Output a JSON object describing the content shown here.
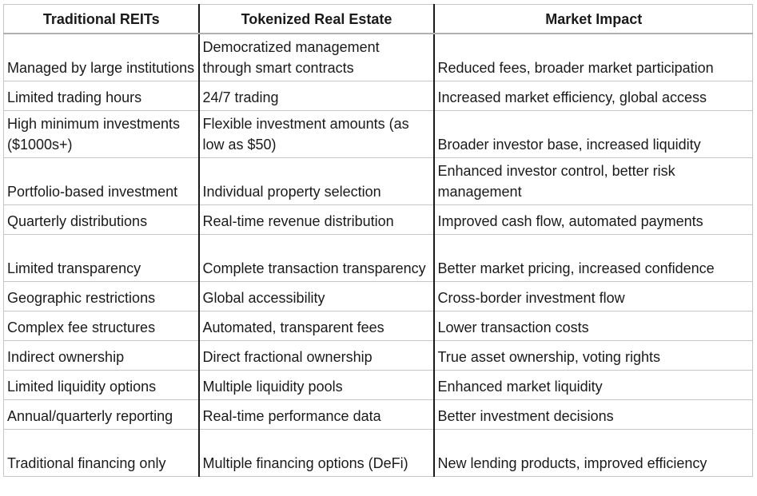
{
  "headers": [
    "Traditional REITs",
    "Tokenized Real Estate",
    "Market Impact"
  ],
  "rows": [
    [
      "Managed by large institutions",
      "Democratized management through smart contracts",
      "Reduced fees, broader market participation"
    ],
    [
      "Limited trading hours",
      "24/7 trading",
      "Increased market efficiency, global access"
    ],
    [
      "High minimum investments ($1000s+)",
      "Flexible investment amounts (as low as $50)",
      "Broader investor base, increased liquidity"
    ],
    [
      "Portfolio-based investment",
      "Individual property selection",
      "Enhanced investor control, better risk management"
    ],
    [
      "Quarterly distributions",
      "Real-time revenue distribution",
      "Improved cash flow, automated payments"
    ],
    [
      "Limited transparency",
      "Complete transaction transparency",
      "Better market pricing, increased confidence"
    ],
    [
      "Geographic restrictions",
      "Global accessibility",
      "Cross-border investment flow"
    ],
    [
      "Complex fee structures",
      "Automated, transparent fees",
      "Lower transaction costs"
    ],
    [
      "Indirect ownership",
      "Direct fractional ownership",
      "True asset ownership, voting rights"
    ],
    [
      "Limited liquidity options",
      "Multiple liquidity pools",
      "Enhanced market liquidity"
    ],
    [
      "Annual/quarterly reporting",
      "Real-time performance data",
      "Better investment decisions"
    ],
    [
      "Traditional financing only",
      "Multiple financing options (DeFi)",
      "New lending products, improved efficiency"
    ]
  ]
}
